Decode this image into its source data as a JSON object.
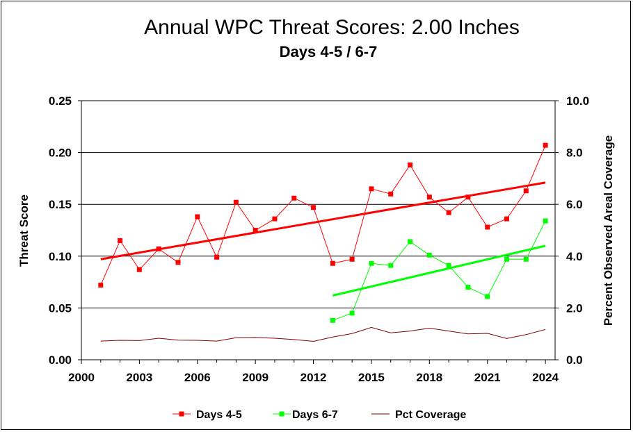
{
  "chart_data": {
    "type": "line",
    "title": "Annual WPC Threat Scores:  2.00 Inches",
    "subtitle": "Days 4-5 / 6-7",
    "ylabel": "Threat Score",
    "y2label": "Percent Observed Areal Coverage",
    "xlim": [
      2000,
      2024.5
    ],
    "ylim": [
      0,
      0.25
    ],
    "y2lim": [
      0,
      10
    ],
    "x_ticks": [
      "2000",
      "2003",
      "2006",
      "2009",
      "2012",
      "2015",
      "2018",
      "2021",
      "2024"
    ],
    "y_ticks": [
      "0.00",
      "0.05",
      "0.10",
      "0.15",
      "0.20",
      "0.25"
    ],
    "y2_ticks": [
      "0.0",
      "2.0",
      "4.0",
      "6.0",
      "8.0",
      "10.0"
    ],
    "grid": "horizontal",
    "legend_position": "bottom",
    "series": [
      {
        "name": "Days 4-5",
        "axis": "left",
        "color": "#ff0000",
        "marker": "square",
        "x": [
          2001,
          2002,
          2003,
          2004,
          2005,
          2006,
          2007,
          2008,
          2009,
          2010,
          2011,
          2012,
          2013,
          2014,
          2015,
          2016,
          2017,
          2018,
          2019,
          2020,
          2021,
          2022,
          2023,
          2024
        ],
        "values": [
          0.072,
          0.115,
          0.087,
          0.107,
          0.094,
          0.138,
          0.099,
          0.152,
          0.125,
          0.136,
          0.156,
          0.147,
          0.093,
          0.097,
          0.165,
          0.16,
          0.188,
          0.157,
          0.142,
          0.157,
          0.128,
          0.136,
          0.163,
          0.207
        ]
      },
      {
        "name": "Days 6-7",
        "axis": "left",
        "color": "#00ff00",
        "marker": "square",
        "x": [
          2013,
          2014,
          2015,
          2016,
          2017,
          2018,
          2019,
          2020,
          2021,
          2022,
          2023,
          2024
        ],
        "values": [
          0.038,
          0.045,
          0.093,
          0.091,
          0.114,
          0.101,
          0.091,
          0.07,
          0.061,
          0.097,
          0.097,
          0.134
        ]
      },
      {
        "name": "Pct Coverage",
        "axis": "right",
        "color": "#800000",
        "marker": "none",
        "x": [
          2001,
          2002,
          2003,
          2004,
          2005,
          2006,
          2007,
          2008,
          2009,
          2010,
          2011,
          2012,
          2013,
          2014,
          2015,
          2016,
          2017,
          2018,
          2019,
          2020,
          2021,
          2022,
          2023,
          2024
        ],
        "values": [
          0.72,
          0.75,
          0.74,
          0.83,
          0.76,
          0.75,
          0.72,
          0.85,
          0.86,
          0.83,
          0.78,
          0.71,
          0.88,
          1.01,
          1.25,
          1.04,
          1.11,
          1.22,
          1.11,
          1.0,
          1.02,
          0.82,
          0.97,
          1.17
        ]
      }
    ],
    "trendlines": [
      {
        "series": "Days 4-5",
        "color": "#ff0000",
        "x": [
          2001,
          2024
        ],
        "values": [
          0.097,
          0.171
        ]
      },
      {
        "series": "Days 6-7",
        "color": "#00ff00",
        "x": [
          2013,
          2024
        ],
        "values": [
          0.062,
          0.11
        ]
      }
    ]
  }
}
